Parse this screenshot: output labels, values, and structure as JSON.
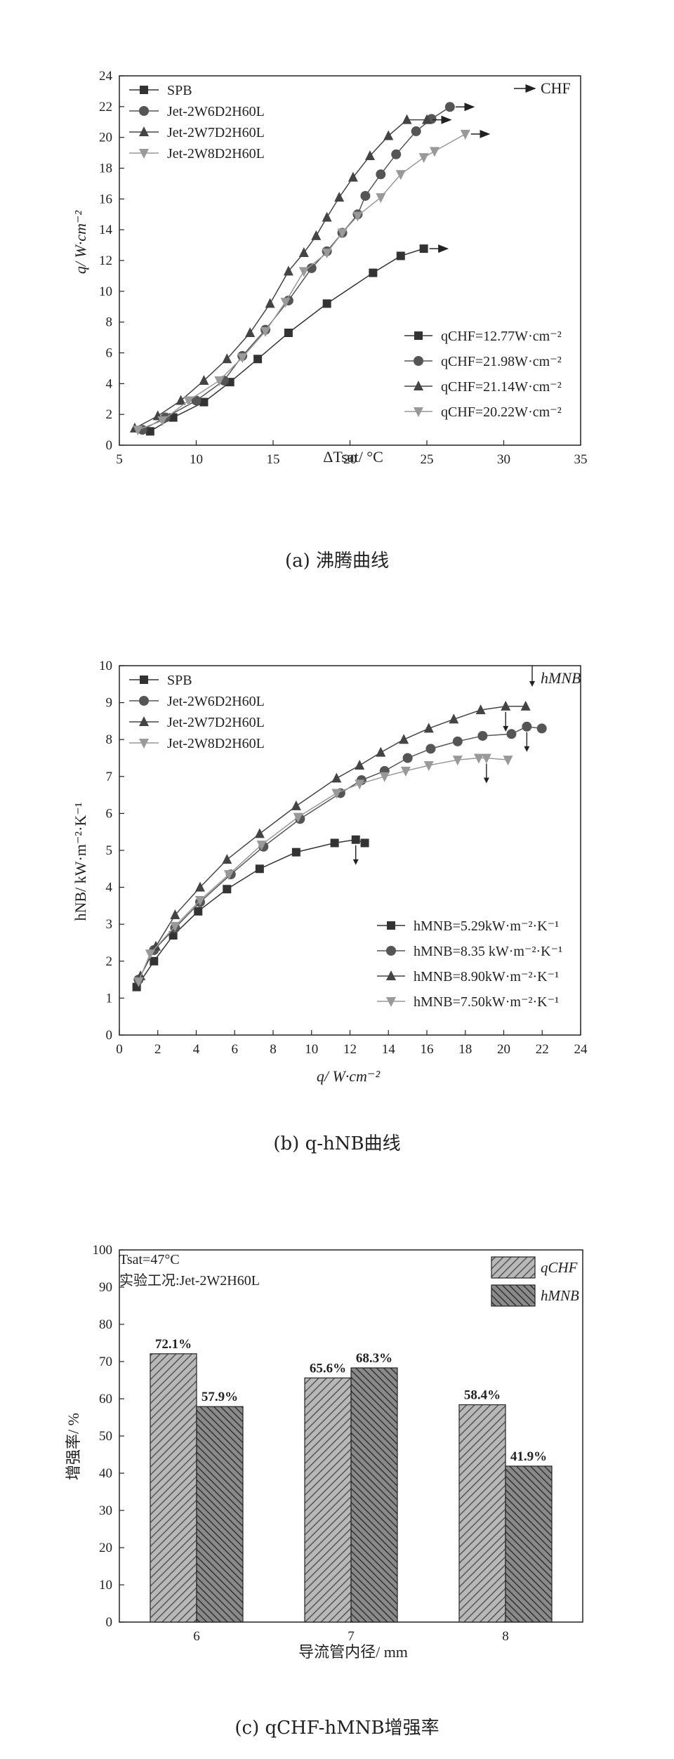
{
  "chart_data": [
    {
      "type": "line",
      "caption": "(a) 沸腾曲线",
      "xlabel": "ΔTsat/ °C",
      "ylabel": "q/ W·cm⁻²",
      "xlim": [
        5,
        35
      ],
      "ylim": [
        0,
        24
      ],
      "xticks": [
        "5",
        "10",
        "15",
        "20",
        "25",
        "30",
        "35"
      ],
      "yticks": [
        "0",
        "2",
        "4",
        "6",
        "8",
        "10",
        "12",
        "14",
        "16",
        "18",
        "20",
        "22",
        "24"
      ],
      "arrow_label": "CHF",
      "legend": [
        "SPB",
        "Jet-2W6D2H60L",
        "Jet-2W7D2H60L",
        "Jet-2W8D2H60L"
      ],
      "annotations": [
        "qCHF=12.77W·cm⁻²",
        "qCHF=21.98W·cm⁻²",
        "qCHF=21.14W·cm⁻²",
        "qCHF=20.22W·cm⁻²"
      ],
      "series": [
        {
          "name": "SPB",
          "marker": "square",
          "color": "#333333",
          "x": [
            7.0,
            8.5,
            10.5,
            12.2,
            14.0,
            16.0,
            18.5,
            21.5,
            23.3,
            24.8
          ],
          "y": [
            0.9,
            1.8,
            2.8,
            4.1,
            5.6,
            7.3,
            9.2,
            11.2,
            12.3,
            12.77
          ]
        },
        {
          "name": "Jet-2W6D2H60L",
          "marker": "circle",
          "color": "#555555",
          "x": [
            6.5,
            8.0,
            10.0,
            11.8,
            13.0,
            14.5,
            16.0,
            17.5,
            18.5,
            19.5,
            20.5,
            21.0,
            22.0,
            23.0,
            24.3,
            25.3,
            26.5
          ],
          "y": [
            1.0,
            1.8,
            2.9,
            4.2,
            5.8,
            7.5,
            9.4,
            11.5,
            12.6,
            13.8,
            15.0,
            16.2,
            17.6,
            18.9,
            20.4,
            21.2,
            21.98
          ]
        },
        {
          "name": "Jet-2W7D2H60L",
          "marker": "triangle-up",
          "color": "#444444",
          "x": [
            6.0,
            7.5,
            9.0,
            10.5,
            12.0,
            13.5,
            14.8,
            16.0,
            17.0,
            17.8,
            18.5,
            19.3,
            20.2,
            21.3,
            22.5,
            23.7,
            25.0
          ],
          "y": [
            1.1,
            1.9,
            2.9,
            4.2,
            5.6,
            7.3,
            9.2,
            11.3,
            12.5,
            13.6,
            14.8,
            16.1,
            17.4,
            18.8,
            20.1,
            21.14,
            21.14
          ]
        },
        {
          "name": "Jet-2W8D2H60L",
          "marker": "triangle-down",
          "color": "#999999",
          "x": [
            6.2,
            7.8,
            9.5,
            11.5,
            13.0,
            14.5,
            15.8,
            17.0,
            18.5,
            19.5,
            20.5,
            22.0,
            23.3,
            24.8,
            25.5,
            27.5
          ],
          "y": [
            1.0,
            1.6,
            2.9,
            4.2,
            5.7,
            7.4,
            9.3,
            11.3,
            12.5,
            13.8,
            14.9,
            16.1,
            17.6,
            18.7,
            19.1,
            20.22
          ]
        }
      ]
    },
    {
      "type": "line",
      "caption": "(b) q-hNB曲线",
      "xlabel": "q/ W·cm⁻²",
      "ylabel": "hNB/ kW·m⁻²·K⁻¹",
      "xlim": [
        0,
        24
      ],
      "ylim": [
        0,
        10
      ],
      "xticks": [
        "0",
        "2",
        "4",
        "6",
        "8",
        "10",
        "12",
        "14",
        "16",
        "18",
        "20",
        "22",
        "24"
      ],
      "yticks": [
        "0",
        "1",
        "2",
        "3",
        "4",
        "5",
        "6",
        "7",
        "8",
        "9",
        "10"
      ],
      "arrow_label": "hMNB",
      "legend": [
        "SPB",
        "Jet-2W6D2H60L",
        "Jet-2W7D2H60L",
        "Jet-2W8D2H60L"
      ],
      "annotations": [
        "hMNB=5.29kW·m⁻²·K⁻¹",
        "hMNB=8.35 kW·m⁻²·K⁻¹",
        "hMNB=8.90kW·m⁻²·K⁻¹",
        "hMNB=7.50kW·m⁻²·K⁻¹"
      ],
      "series": [
        {
          "name": "SPB",
          "marker": "square",
          "color": "#333333",
          "x": [
            0.9,
            1.8,
            2.8,
            4.1,
            5.6,
            7.3,
            9.2,
            11.2,
            12.3,
            12.77
          ],
          "y": [
            1.3,
            2.0,
            2.7,
            3.35,
            3.95,
            4.5,
            4.95,
            5.2,
            5.29,
            5.2
          ]
        },
        {
          "name": "Jet-2W6D2H60L",
          "marker": "circle",
          "color": "#555555",
          "x": [
            1.0,
            1.8,
            2.9,
            4.2,
            5.8,
            7.5,
            9.4,
            11.5,
            12.6,
            13.8,
            15.0,
            16.2,
            17.6,
            18.9,
            20.4,
            21.2,
            21.98
          ],
          "y": [
            1.5,
            2.3,
            2.9,
            3.6,
            4.35,
            5.1,
            5.85,
            6.55,
            6.9,
            7.15,
            7.5,
            7.75,
            7.95,
            8.1,
            8.15,
            8.35,
            8.3
          ]
        },
        {
          "name": "Jet-2W7D2H60L",
          "marker": "triangle-up",
          "color": "#444444",
          "x": [
            1.1,
            1.9,
            2.9,
            4.2,
            5.6,
            7.3,
            9.2,
            11.3,
            12.5,
            13.6,
            14.8,
            16.1,
            17.4,
            18.8,
            20.1,
            21.14
          ],
          "y": [
            1.6,
            2.4,
            3.25,
            4.0,
            4.75,
            5.45,
            6.2,
            6.95,
            7.3,
            7.65,
            8.0,
            8.3,
            8.55,
            8.8,
            8.9,
            8.9
          ]
        },
        {
          "name": "Jet-2W8D2H60L",
          "marker": "triangle-down",
          "color": "#999999",
          "x": [
            1.0,
            1.6,
            2.9,
            4.2,
            5.7,
            7.4,
            9.3,
            11.3,
            12.5,
            13.8,
            14.9,
            16.1,
            17.6,
            18.7,
            19.1,
            20.22
          ],
          "y": [
            1.45,
            2.2,
            2.95,
            3.65,
            4.35,
            5.15,
            5.9,
            6.55,
            6.8,
            7.0,
            7.15,
            7.3,
            7.45,
            7.5,
            7.5,
            7.45
          ]
        }
      ]
    },
    {
      "type": "bar",
      "caption": "(c) qCHF-hMNB增强率",
      "xlabel": "导流管内径/ mm",
      "ylabel": "增强率/ %",
      "categories": [
        "6",
        "7",
        "8"
      ],
      "ylim": [
        0,
        100
      ],
      "yticks": [
        "0",
        "10",
        "20",
        "30",
        "40",
        "50",
        "60",
        "70",
        "80",
        "90",
        "100"
      ],
      "note1": "Tsat=47°C",
      "note2": "实验工况:Jet-2W2H60L",
      "series": [
        {
          "name": "qCHF",
          "values": [
            72.1,
            65.6,
            58.4
          ],
          "labels": [
            "72.1%",
            "65.6%",
            "58.4%"
          ],
          "color": "#8f8f8f"
        },
        {
          "name": "hMNB",
          "values": [
            57.9,
            68.3,
            41.9
          ],
          "labels": [
            "57.9%",
            "68.3%",
            "41.9%"
          ],
          "color": "#5e5e5e"
        }
      ]
    }
  ]
}
